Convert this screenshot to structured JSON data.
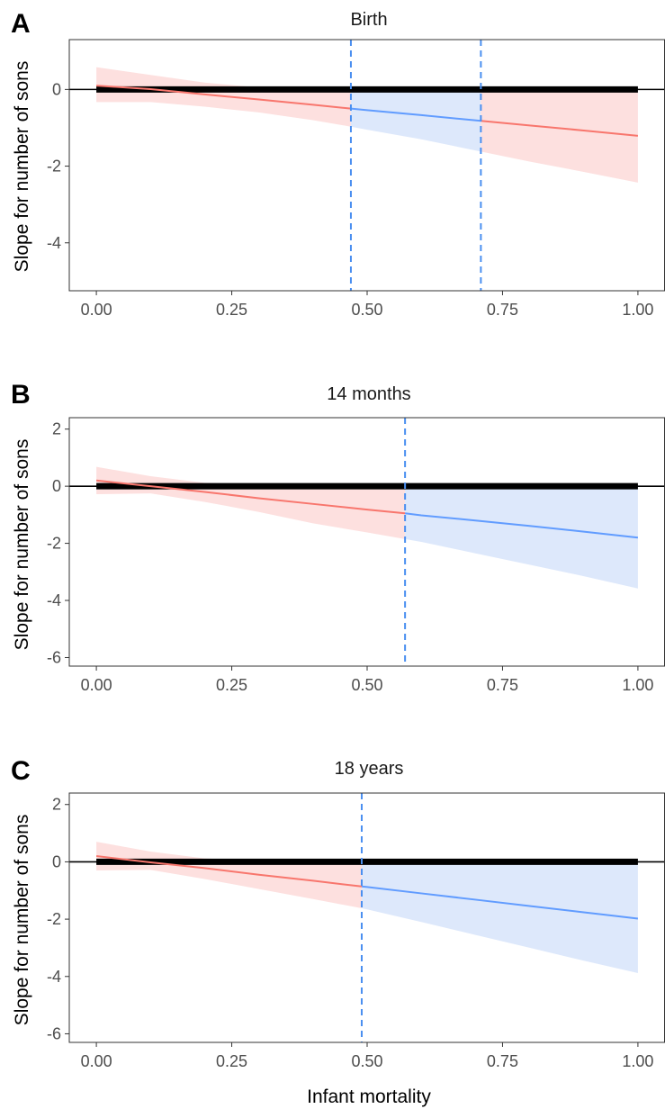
{
  "colors": {
    "red_line": "#f8766d",
    "red_fill": "#fde0df",
    "blue_line": "#619cff",
    "blue_fill": "#dde8fb",
    "zero_line": "#000000",
    "vline": "#4a8ff0"
  },
  "x_axis_title": "Infant mortality",
  "y_axis_title": "Slope for number of sons",
  "chart_data": [
    {
      "type": "line",
      "panel": "A",
      "title": "Birth",
      "xlabel": "Infant mortality",
      "ylabel": "Slope for number of sons",
      "xlim": [
        -0.05,
        1.05
      ],
      "ylim": [
        -5.25,
        1.3
      ],
      "x_ticks": [
        0,
        0.25,
        0.5,
        0.75,
        1
      ],
      "x_tick_labels": [
        "0.00",
        "0.25",
        "0.50",
        "0.75",
        "1.00"
      ],
      "y_ticks": [
        0,
        -2,
        -4
      ],
      "y_tick_labels": [
        "0",
        "-2",
        "-4"
      ],
      "vlines": [
        0.47,
        0.71
      ],
      "grid": false,
      "series": [
        {
          "x": [
            0,
            0.1,
            0.2,
            0.3,
            0.4,
            0.47,
            0.5,
            0.6,
            0.71,
            0.8,
            0.9,
            1.0
          ],
          "y": [
            0.1,
            0.01,
            -0.13,
            -0.26,
            -0.4,
            -0.5,
            -0.54,
            -0.67,
            -0.82,
            -0.94,
            -1.07,
            -1.21
          ],
          "lower": [
            -0.33,
            -0.33,
            -0.45,
            -0.6,
            -0.8,
            -0.97,
            -1.05,
            -1.3,
            -1.62,
            -1.88,
            -2.15,
            -2.43
          ],
          "upper": [
            0.58,
            0.38,
            0.18,
            0.05,
            0.0,
            0.0,
            0.0,
            0.0,
            0.0,
            0.0,
            0.0,
            0.0
          ]
        }
      ]
    },
    {
      "type": "line",
      "panel": "B",
      "title": "14 months",
      "xlabel": "Infant mortality",
      "ylabel": "Slope for number of sons",
      "xlim": [
        -0.05,
        1.05
      ],
      "ylim": [
        -6.3,
        2.4
      ],
      "x_ticks": [
        0,
        0.25,
        0.5,
        0.75,
        1
      ],
      "x_tick_labels": [
        "0.00",
        "0.25",
        "0.50",
        "0.75",
        "1.00"
      ],
      "y_ticks": [
        2,
        0,
        -2,
        -4,
        -6
      ],
      "y_tick_labels": [
        "2",
        "0",
        "-2",
        "-4",
        "-6"
      ],
      "vlines": [
        0.57
      ],
      "grid": false,
      "series": [
        {
          "x": [
            0,
            0.1,
            0.2,
            0.3,
            0.4,
            0.5,
            0.57,
            0.6,
            0.7,
            0.8,
            0.9,
            1.0
          ],
          "y": [
            0.2,
            0.0,
            -0.2,
            -0.42,
            -0.62,
            -0.82,
            -0.95,
            -1.02,
            -1.2,
            -1.39,
            -1.59,
            -1.8
          ],
          "lower": [
            -0.28,
            -0.25,
            -0.55,
            -0.9,
            -1.3,
            -1.62,
            -1.85,
            -1.95,
            -2.35,
            -2.75,
            -3.15,
            -3.58
          ],
          "upper": [
            0.68,
            0.35,
            0.12,
            0.04,
            0.0,
            0.0,
            0.0,
            0.0,
            0.0,
            0.0,
            0.0,
            0.0
          ]
        }
      ]
    },
    {
      "type": "line",
      "panel": "C",
      "title": "18 years",
      "xlabel": "Infant mortality",
      "ylabel": "Slope for number of sons",
      "xlim": [
        -0.05,
        1.05
      ],
      "ylim": [
        -6.3,
        2.4
      ],
      "x_ticks": [
        0,
        0.25,
        0.5,
        0.75,
        1
      ],
      "x_tick_labels": [
        "0.00",
        "0.25",
        "0.50",
        "0.75",
        "1.00"
      ],
      "y_ticks": [
        2,
        0,
        -2,
        -4,
        -6
      ],
      "y_tick_labels": [
        "2",
        "0",
        "-2",
        "-4",
        "-6"
      ],
      "vlines": [
        0.49
      ],
      "grid": false,
      "series": [
        {
          "x": [
            0,
            0.1,
            0.2,
            0.3,
            0.4,
            0.49,
            0.5,
            0.6,
            0.7,
            0.8,
            0.9,
            1.0
          ],
          "y": [
            0.2,
            -0.02,
            -0.22,
            -0.45,
            -0.66,
            -0.86,
            -0.88,
            -1.1,
            -1.32,
            -1.54,
            -1.76,
            -1.98
          ],
          "lower": [
            -0.3,
            -0.28,
            -0.6,
            -0.95,
            -1.3,
            -1.62,
            -1.66,
            -2.1,
            -2.55,
            -3.0,
            -3.45,
            -3.88
          ],
          "upper": [
            0.7,
            0.36,
            0.12,
            0.04,
            0.0,
            0.0,
            0.0,
            0.0,
            0.0,
            0.0,
            0.0,
            0.0
          ]
        }
      ]
    }
  ]
}
